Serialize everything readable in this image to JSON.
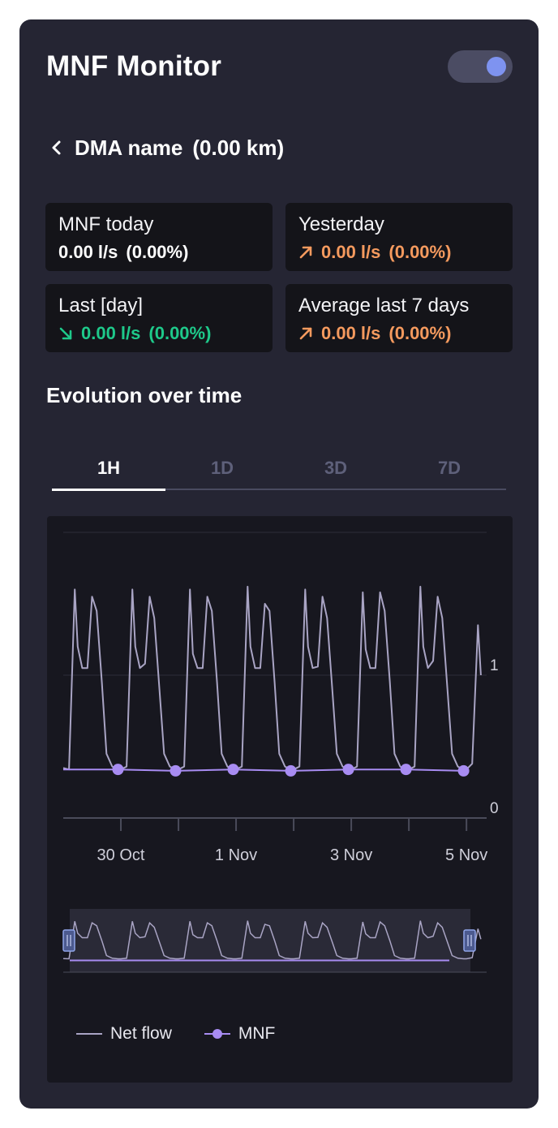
{
  "header": {
    "title": "MNF Monitor",
    "toggle_on": true
  },
  "dma": {
    "name": "DMA name",
    "length": "(0.00 km)"
  },
  "cards": [
    {
      "label": "MNF today",
      "value": "0.00 l/s",
      "percent": "(0.00%)",
      "trend": "none"
    },
    {
      "label": "Yesterday",
      "value": "0.00 l/s",
      "percent": "(0.00%)",
      "trend": "up"
    },
    {
      "label": "Last [day]",
      "value": "0.00 l/s",
      "percent": "(0.00%)",
      "trend": "down"
    },
    {
      "label": "Average last 7 days",
      "value": "0.00 l/s",
      "percent": "(0.00%)",
      "trend": "up"
    }
  ],
  "section": {
    "title": "Evolution over time"
  },
  "tabs": [
    {
      "label": "1H",
      "active": true
    },
    {
      "label": "1D",
      "active": false
    },
    {
      "label": "3D",
      "active": false
    },
    {
      "label": "7D",
      "active": false
    }
  ],
  "legend": {
    "net_flow": "Net flow",
    "mnf": "MNF"
  },
  "colors": {
    "panel": "#252533",
    "card": "#141419",
    "orange": "#f59a5e",
    "green": "#1ec98a",
    "net_flow": "#a9a4c4",
    "mnf": "#a88cf2",
    "toggle_knob": "#7e93f0"
  },
  "chart_data": {
    "type": "line",
    "x_tick_labels": [
      "30 Oct",
      "1 Nov",
      "3 Nov",
      "5 Nov"
    ],
    "y_tick_labels": [
      "0",
      "1"
    ],
    "ylim": [
      0,
      2
    ],
    "grid": true,
    "legend_placement": "bottom-left",
    "x_days": [
      0,
      0.1,
      0.2,
      0.25,
      0.33,
      0.42,
      0.5,
      0.58,
      0.67,
      0.75,
      0.85,
      0.95,
      1,
      1.1,
      1.2,
      1.25,
      1.33,
      1.42,
      1.5,
      1.58,
      1.67,
      1.75,
      1.85,
      1.95,
      2,
      2.1,
      2.2,
      2.25,
      2.33,
      2.42,
      2.5,
      2.58,
      2.67,
      2.75,
      2.85,
      2.95,
      3,
      3.1,
      3.2,
      3.25,
      3.33,
      3.42,
      3.5,
      3.58,
      3.67,
      3.75,
      3.85,
      3.95,
      4,
      4.1,
      4.2,
      4.25,
      4.33,
      4.42,
      4.5,
      4.58,
      4.67,
      4.75,
      4.85,
      4.95,
      5,
      5.1,
      5.2,
      5.25,
      5.33,
      5.42,
      5.5,
      5.58,
      5.67,
      5.75,
      5.85,
      5.95,
      6,
      6.1,
      6.2,
      6.25,
      6.33,
      6.42,
      6.5,
      6.58,
      6.67,
      6.75,
      6.85,
      6.95,
      7,
      7.1,
      7.2,
      7.25
    ],
    "series": [
      {
        "name": "Net flow",
        "values": [
          0.35,
          0.34,
          1.6,
          1.2,
          1.05,
          1.05,
          1.55,
          1.45,
          0.95,
          0.45,
          0.36,
          0.34,
          0.34,
          0.36,
          1.6,
          1.2,
          1.05,
          1.08,
          1.55,
          1.4,
          0.9,
          0.45,
          0.36,
          0.34,
          0.34,
          0.36,
          1.6,
          1.15,
          1.05,
          1.05,
          1.55,
          1.45,
          0.95,
          0.45,
          0.36,
          0.34,
          0.34,
          0.36,
          1.62,
          1.2,
          1.05,
          1.05,
          1.5,
          1.45,
          0.95,
          0.45,
          0.36,
          0.34,
          0.34,
          0.36,
          1.6,
          1.2,
          1.05,
          1.06,
          1.55,
          1.4,
          0.9,
          0.45,
          0.36,
          0.34,
          0.34,
          0.36,
          1.58,
          1.18,
          1.05,
          1.05,
          1.58,
          1.45,
          0.95,
          0.45,
          0.36,
          0.34,
          0.34,
          0.36,
          1.62,
          1.2,
          1.05,
          1.1,
          1.55,
          1.4,
          0.9,
          0.45,
          0.36,
          0.34,
          0.34,
          0.38,
          1.35,
          1.0
        ]
      },
      {
        "name": "MNF",
        "x": [
          0.95,
          1.95,
          2.95,
          3.95,
          4.95,
          5.95,
          6.95
        ],
        "values": [
          0.34,
          0.33,
          0.34,
          0.33,
          0.34,
          0.34,
          0.33
        ]
      }
    ]
  }
}
